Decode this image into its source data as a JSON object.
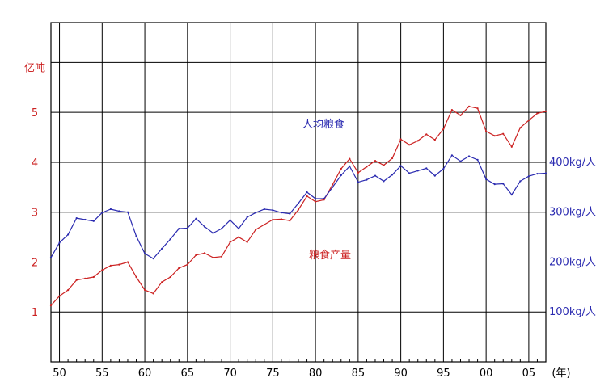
{
  "chart_data": {
    "type": "line",
    "left_axis_unit": "亿吨",
    "right_axis_unit": "",
    "x_unit": "(年)",
    "x_tick_labels": [
      "50",
      "55",
      "60",
      "65",
      "70",
      "75",
      "80",
      "85",
      "90",
      "95",
      "00",
      "05"
    ],
    "left_ticks": [
      {
        "label": "1",
        "value": 1
      },
      {
        "label": "2",
        "value": 2
      },
      {
        "label": "3",
        "value": 3
      },
      {
        "label": "4",
        "value": 4
      },
      {
        "label": "5",
        "value": 5
      }
    ],
    "right_ticks": [
      {
        "label": "100kg/人",
        "value": 100
      },
      {
        "label": "200kg/人",
        "value": 200
      },
      {
        "label": "300kg/人",
        "value": 300
      },
      {
        "label": "400kg/人",
        "value": 400
      }
    ],
    "xlim": [
      1949,
      2007
    ],
    "ylim_left": [
      0,
      6.8
    ],
    "ylim_right": [
      0,
      680
    ],
    "grid": true,
    "colors": {
      "production": "#cc2222",
      "per_capita": "#2a2ab0",
      "grid": "#000000"
    },
    "series": [
      {
        "name": "粮食产量",
        "axis": "left",
        "x": [
          1949,
          1950,
          1951,
          1952,
          1953,
          1954,
          1955,
          1956,
          1957,
          1958,
          1959,
          1960,
          1961,
          1962,
          1963,
          1964,
          1965,
          1966,
          1967,
          1968,
          1969,
          1970,
          1971,
          1972,
          1973,
          1974,
          1975,
          1976,
          1977,
          1978,
          1979,
          1980,
          1981,
          1982,
          1983,
          1984,
          1985,
          1986,
          1987,
          1988,
          1989,
          1990,
          1991,
          1992,
          1993,
          1994,
          1995,
          1996,
          1997,
          1998,
          1999,
          2000,
          2001,
          2002,
          2003,
          2004,
          2005,
          2006,
          2007
        ],
        "y": [
          1.13,
          1.32,
          1.44,
          1.64,
          1.67,
          1.7,
          1.84,
          1.93,
          1.95,
          2.0,
          1.7,
          1.44,
          1.37,
          1.6,
          1.7,
          1.88,
          1.95,
          2.14,
          2.18,
          2.09,
          2.11,
          2.4,
          2.5,
          2.4,
          2.65,
          2.75,
          2.85,
          2.86,
          2.83,
          3.05,
          3.32,
          3.21,
          3.25,
          3.55,
          3.87,
          4.07,
          3.79,
          3.91,
          4.03,
          3.94,
          4.08,
          4.46,
          4.35,
          4.43,
          4.56,
          4.45,
          4.67,
          5.05,
          4.94,
          5.12,
          5.08,
          4.62,
          4.53,
          4.57,
          4.31,
          4.69,
          4.84,
          4.98,
          5.02
        ]
      },
      {
        "name": "人均粮食",
        "axis": "right",
        "x": [
          1949,
          1950,
          1951,
          1952,
          1953,
          1954,
          1955,
          1956,
          1957,
          1958,
          1959,
          1960,
          1961,
          1962,
          1963,
          1964,
          1965,
          1966,
          1967,
          1968,
          1969,
          1970,
          1971,
          1972,
          1973,
          1974,
          1975,
          1976,
          1977,
          1978,
          1979,
          1980,
          1981,
          1982,
          1983,
          1984,
          1985,
          1986,
          1987,
          1988,
          1989,
          1990,
          1991,
          1992,
          1993,
          1994,
          1995,
          1996,
          1997,
          1998,
          1999,
          2000,
          2001,
          2002,
          2003,
          2004,
          2005,
          2006,
          2007
        ],
        "y": [
          209,
          239,
          255,
          288,
          285,
          282,
          299,
          306,
          302,
          300,
          252,
          217,
          207,
          227,
          246,
          267,
          268,
          287,
          271,
          258,
          267,
          284,
          267,
          290,
          299,
          306,
          304,
          299,
          297,
          318,
          340,
          327,
          327,
          350,
          374,
          392,
          360,
          365,
          373,
          362,
          375,
          393,
          378,
          383,
          388,
          373,
          387,
          414,
          402,
          412,
          405,
          366,
          356,
          357,
          335,
          362,
          372,
          377,
          378
        ]
      }
    ],
    "annotations": [
      {
        "text": "人均粮食",
        "color": "blue"
      },
      {
        "text": "粮食产量",
        "color": "red"
      }
    ]
  }
}
